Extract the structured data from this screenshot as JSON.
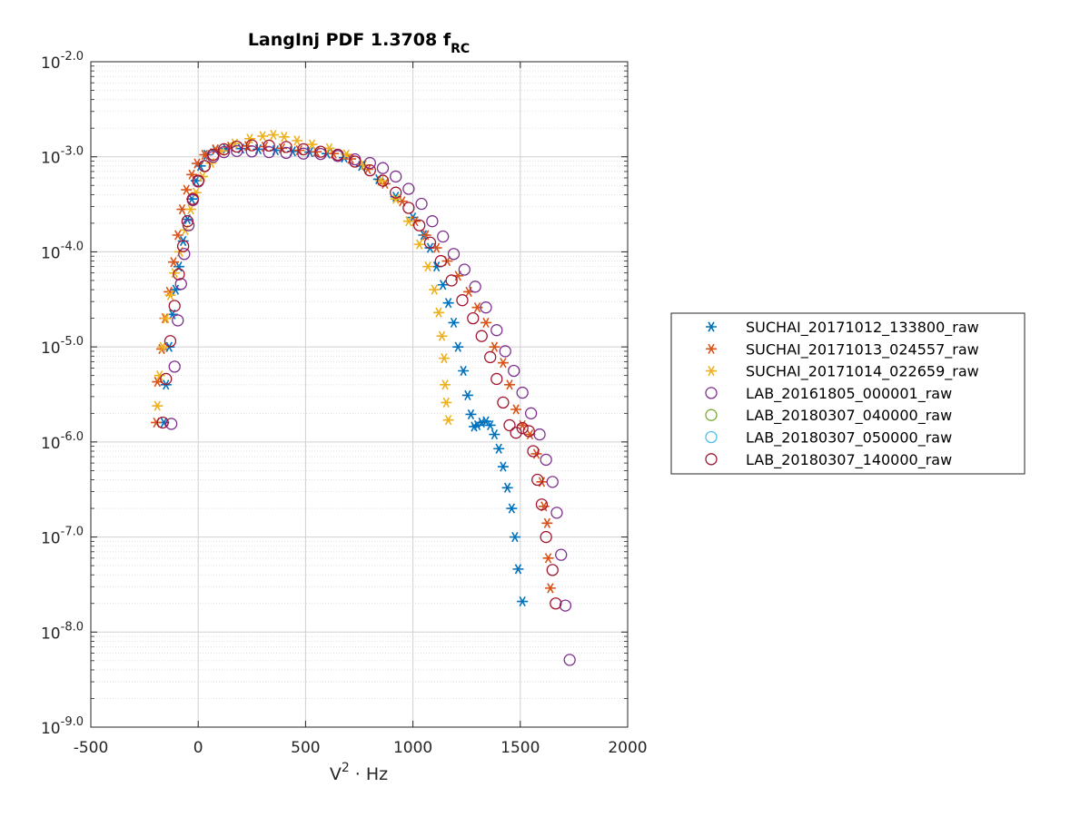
{
  "chart_data": {
    "type": "scatter",
    "title_main": "LangInj PDF 1.3708 f",
    "title_sub": "RC",
    "xlabel_base": "V",
    "xlabel_sup": "2",
    "xlabel_rest": " · Hz",
    "ylabel": "",
    "xlim": [
      -500,
      2000
    ],
    "ylim_exponent": [
      -9,
      -2
    ],
    "y_scale": "log",
    "grid": true,
    "minor_grid": true,
    "legend_position": "outside-right",
    "x_ticks": [
      "-500",
      "0",
      "500",
      "1000",
      "1500",
      "2000"
    ],
    "y_ticks": [
      {
        "base": "10",
        "exp": "-2.0"
      },
      {
        "base": "10",
        "exp": "-3.0"
      },
      {
        "base": "10",
        "exp": "-4.0"
      },
      {
        "base": "10",
        "exp": "-5.0"
      },
      {
        "base": "10",
        "exp": "-6.0"
      },
      {
        "base": "10",
        "exp": "-7.0"
      },
      {
        "base": "10",
        "exp": "-8.0"
      },
      {
        "base": "10",
        "exp": "-9.0"
      }
    ],
    "series": [
      {
        "name": "SUCHAI_20171012_133800_raw",
        "marker": "asterisk",
        "color": "#0072BD",
        "points": [
          [
            -160,
            1.6e-06
          ],
          [
            -150,
            4e-06
          ],
          [
            -135,
            1e-05
          ],
          [
            -120,
            2.2e-05
          ],
          [
            -105,
            4e-05
          ],
          [
            -90,
            7e-05
          ],
          [
            -70,
            0.00013
          ],
          [
            -50,
            0.00022
          ],
          [
            -30,
            0.00036
          ],
          [
            -10,
            0.00056
          ],
          [
            10,
            0.0008
          ],
          [
            40,
            0.00105
          ],
          [
            80,
            0.00118
          ],
          [
            130,
            0.00122
          ],
          [
            200,
            0.00122
          ],
          [
            280,
            0.0012
          ],
          [
            360,
            0.00117
          ],
          [
            440,
            0.00114
          ],
          [
            520,
            0.00112
          ],
          [
            600,
            0.00108
          ],
          [
            680,
            0.00098
          ],
          [
            760,
            0.0008
          ],
          [
            840,
            0.00058
          ],
          [
            920,
            0.00038
          ],
          [
            1000,
            0.00023
          ],
          [
            1050,
            0.00015
          ],
          [
            1080,
            0.00011
          ],
          [
            1110,
            7e-05
          ],
          [
            1140,
            4.5e-05
          ],
          [
            1165,
            2.9e-05
          ],
          [
            1190,
            1.8e-05
          ],
          [
            1210,
            1e-05
          ],
          [
            1235,
            5.6e-06
          ],
          [
            1255,
            3.1e-06
          ],
          [
            1270,
            1.95e-06
          ],
          [
            1285,
            1.45e-06
          ],
          [
            1300,
            1.5e-06
          ],
          [
            1320,
            1.6e-06
          ],
          [
            1340,
            1.65e-06
          ],
          [
            1360,
            1.5e-06
          ],
          [
            1380,
            1.2e-06
          ],
          [
            1400,
            8.5e-07
          ],
          [
            1420,
            5.5e-07
          ],
          [
            1440,
            3.3e-07
          ],
          [
            1460,
            2e-07
          ],
          [
            1475,
            1e-07
          ],
          [
            1490,
            4.6e-08
          ],
          [
            1510,
            2.1e-08
          ]
        ]
      },
      {
        "name": "SUCHAI_20171013_024557_raw",
        "marker": "asterisk",
        "color": "#D95319",
        "points": [
          [
            -195,
            1.6e-06
          ],
          [
            -190,
            4.3e-06
          ],
          [
            -170,
            9.5e-06
          ],
          [
            -155,
            2e-05
          ],
          [
            -135,
            3.8e-05
          ],
          [
            -115,
            7.8e-05
          ],
          [
            -95,
            0.00015
          ],
          [
            -75,
            0.00028
          ],
          [
            -55,
            0.00045
          ],
          [
            -30,
            0.00065
          ],
          [
            -5,
            0.00085
          ],
          [
            30,
            0.00105
          ],
          [
            80,
            0.0012
          ],
          [
            150,
            0.00128
          ],
          [
            230,
            0.0013
          ],
          [
            310,
            0.00128
          ],
          [
            390,
            0.00123
          ],
          [
            470,
            0.00117
          ],
          [
            550,
            0.00113
          ],
          [
            630,
            0.00108
          ],
          [
            710,
            0.00095
          ],
          [
            790,
            0.00074
          ],
          [
            870,
            0.00052
          ],
          [
            950,
            0.00034
          ],
          [
            1010,
            0.00021
          ],
          [
            1060,
            0.00015
          ],
          [
            1110,
            0.00011
          ],
          [
            1160,
            8e-05
          ],
          [
            1210,
            5.6e-05
          ],
          [
            1260,
            3.8e-05
          ],
          [
            1300,
            2.6e-05
          ],
          [
            1340,
            1.8e-05
          ],
          [
            1380,
            1e-05
          ],
          [
            1420,
            6.8e-06
          ],
          [
            1450,
            4e-06
          ],
          [
            1480,
            2.2e-06
          ],
          [
            1510,
            1.5e-06
          ],
          [
            1545,
            1.2e-06
          ],
          [
            1575,
            7.5e-07
          ],
          [
            1600,
            3.8e-07
          ],
          [
            1610,
            2.1e-07
          ],
          [
            1625,
            1.4e-07
          ],
          [
            1630,
            6e-08
          ],
          [
            1640,
            2.9e-08
          ]
        ]
      },
      {
        "name": "SUCHAI_20171014_022659_raw",
        "marker": "asterisk",
        "color": "#EDB120",
        "points": [
          [
            -190,
            2.4e-06
          ],
          [
            -180,
            5e-06
          ],
          [
            -165,
            1e-05
          ],
          [
            -150,
            2e-05
          ],
          [
            -130,
            3.5e-05
          ],
          [
            -110,
            6e-05
          ],
          [
            -85,
            0.0001
          ],
          [
            -60,
            0.00017
          ],
          [
            -35,
            0.00028
          ],
          [
            -10,
            0.00042
          ],
          [
            20,
            0.00062
          ],
          [
            60,
            0.00086
          ],
          [
            110,
            0.00115
          ],
          [
            170,
            0.00138
          ],
          [
            240,
            0.00155
          ],
          [
            300,
            0.00165
          ],
          [
            350,
            0.0017
          ],
          [
            400,
            0.00162
          ],
          [
            460,
            0.00148
          ],
          [
            530,
            0.00135
          ],
          [
            610,
            0.00123
          ],
          [
            690,
            0.00106
          ],
          [
            770,
            0.00082
          ],
          [
            850,
            0.00056
          ],
          [
            920,
            0.00036
          ],
          [
            980,
            0.00021
          ],
          [
            1030,
            0.00012
          ],
          [
            1070,
            7e-05
          ],
          [
            1100,
            4e-05
          ],
          [
            1120,
            2.3e-05
          ],
          [
            1135,
            1.3e-05
          ],
          [
            1145,
            7.6e-06
          ],
          [
            1150,
            4e-06
          ],
          [
            1155,
            2.6e-06
          ],
          [
            1165,
            1.7e-06
          ]
        ]
      },
      {
        "name": "LAB_20161805_000001_raw",
        "marker": "circle",
        "color": "#7E2F8E",
        "points": [
          [
            -125,
            1.55e-06
          ],
          [
            -110,
            6.2e-06
          ],
          [
            -95,
            1.9e-05
          ],
          [
            -80,
            4.6e-05
          ],
          [
            -65,
            9.5e-05
          ],
          [
            -45,
            0.00019
          ],
          [
            -25,
            0.00035
          ],
          [
            0,
            0.00055
          ],
          [
            30,
            0.0008
          ],
          [
            70,
            0.001
          ],
          [
            120,
            0.00112
          ],
          [
            180,
            0.00115
          ],
          [
            250,
            0.00114
          ],
          [
            330,
            0.00112
          ],
          [
            410,
            0.0011
          ],
          [
            490,
            0.00108
          ],
          [
            570,
            0.00107
          ],
          [
            650,
            0.00102
          ],
          [
            730,
            0.00094
          ],
          [
            800,
            0.00086
          ],
          [
            860,
            0.00076
          ],
          [
            920,
            0.00062
          ],
          [
            980,
            0.00046
          ],
          [
            1040,
            0.00032
          ],
          [
            1090,
            0.00021
          ],
          [
            1140,
            0.000145
          ],
          [
            1190,
            9.5e-05
          ],
          [
            1240,
            6.5e-05
          ],
          [
            1290,
            4.3e-05
          ],
          [
            1340,
            2.6e-05
          ],
          [
            1390,
            1.5e-05
          ],
          [
            1430,
            9e-06
          ],
          [
            1470,
            5.6e-06
          ],
          [
            1510,
            3.3e-06
          ],
          [
            1550,
            2e-06
          ],
          [
            1590,
            1.2e-06
          ],
          [
            1620,
            6.5e-07
          ],
          [
            1650,
            3.8e-07
          ],
          [
            1670,
            1.8e-07
          ],
          [
            1690,
            6.5e-08
          ],
          [
            1710,
            1.9e-08
          ],
          [
            1730,
            5.1e-09
          ]
        ]
      },
      {
        "name": "LAB_20180307_040000_raw",
        "marker": "circle",
        "color": "#77AC30",
        "points": []
      },
      {
        "name": "LAB_20180307_050000_raw",
        "marker": "circle",
        "color": "#4DBEEE",
        "points": []
      },
      {
        "name": "LAB_20180307_140000_raw",
        "marker": "circle",
        "color": "#A2142F",
        "points": [
          [
            -165,
            1.6e-06
          ],
          [
            -150,
            4.6e-06
          ],
          [
            -130,
            1.15e-05
          ],
          [
            -110,
            2.7e-05
          ],
          [
            -90,
            5.8e-05
          ],
          [
            -70,
            0.000115
          ],
          [
            -50,
            0.00021
          ],
          [
            -25,
            0.00036
          ],
          [
            0,
            0.00056
          ],
          [
            30,
            0.0008
          ],
          [
            70,
            0.00105
          ],
          [
            120,
            0.0012
          ],
          [
            180,
            0.00128
          ],
          [
            250,
            0.00132
          ],
          [
            330,
            0.00131
          ],
          [
            410,
            0.00127
          ],
          [
            490,
            0.0012
          ],
          [
            570,
            0.00113
          ],
          [
            650,
            0.00105
          ],
          [
            730,
            0.00089
          ],
          [
            800,
            0.00072
          ],
          [
            860,
            0.00056
          ],
          [
            920,
            0.00042
          ],
          [
            980,
            0.00029
          ],
          [
            1030,
            0.00019
          ],
          [
            1080,
            0.000125
          ],
          [
            1130,
            8e-05
          ],
          [
            1180,
            5e-05
          ],
          [
            1230,
            3.1e-05
          ],
          [
            1280,
            2e-05
          ],
          [
            1320,
            1.3e-05
          ],
          [
            1360,
            7.8e-06
          ],
          [
            1390,
            4.6e-06
          ],
          [
            1420,
            2.6e-06
          ],
          [
            1450,
            1.5e-06
          ],
          [
            1480,
            1.25e-06
          ],
          [
            1510,
            1.4e-06
          ],
          [
            1540,
            1.3e-06
          ],
          [
            1560,
            8e-07
          ],
          [
            1580,
            4e-07
          ],
          [
            1600,
            2.2e-07
          ],
          [
            1620,
            1e-07
          ],
          [
            1650,
            4.5e-08
          ],
          [
            1665,
            2e-08
          ]
        ]
      }
    ]
  }
}
